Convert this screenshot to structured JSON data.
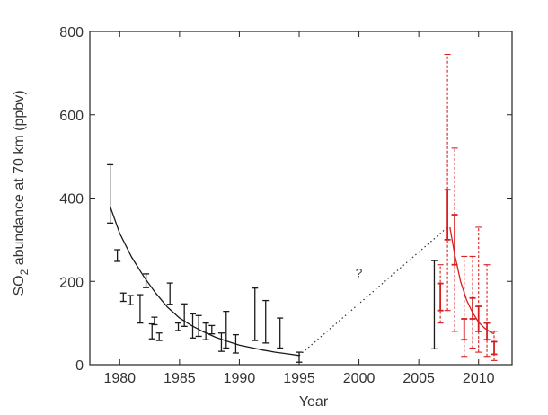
{
  "chart_data": {
    "type": "scatter",
    "title": "",
    "xlabel": "Year",
    "ylabel_main": "SO",
    "ylabel_sub": "2",
    "ylabel_rest": " abundance at 70 km (ppbv)",
    "xlim": [
      1977.5,
      2012.8
    ],
    "ylim": [
      0,
      800
    ],
    "xticks": [
      1980,
      1985,
      1990,
      1995,
      2000,
      2005,
      2010
    ],
    "yticks": [
      0,
      200,
      400,
      600,
      800
    ],
    "grid": false,
    "legend": "none",
    "annotation": "?",
    "annotation_at": [
      2000,
      210
    ],
    "colors": {
      "black": "#1a1a1a",
      "red": "#d62020",
      "axis": "#222222"
    },
    "series": [
      {
        "color": "black",
        "style": "solid",
        "ranges": [
          [
            1979.2,
            340,
            480
          ],
          [
            1979.8,
            248,
            276
          ],
          [
            1980.3,
            152,
            172
          ],
          [
            1980.9,
            144,
            166
          ],
          [
            1981.7,
            100,
            168
          ],
          [
            1982.2,
            185,
            218
          ],
          [
            1982.7,
            62,
            98
          ],
          [
            1982.9,
            96,
            114
          ],
          [
            1983.3,
            58,
            76
          ],
          [
            1984.2,
            145,
            196
          ],
          [
            1984.9,
            82,
            100
          ],
          [
            1985.4,
            92,
            146
          ],
          [
            1986.1,
            64,
            122
          ],
          [
            1986.6,
            68,
            118
          ],
          [
            1987.2,
            60,
            100
          ],
          [
            1987.7,
            74,
            94
          ],
          [
            1988.5,
            32,
            76
          ],
          [
            1988.9,
            40,
            128
          ],
          [
            1989.7,
            28,
            72
          ],
          [
            1991.3,
            58,
            184
          ],
          [
            1992.2,
            52,
            154
          ],
          [
            1993.4,
            40,
            112
          ],
          [
            1995.0,
            6,
            30
          ],
          [
            2006.3,
            38,
            250
          ]
        ],
        "fit": [
          [
            1979.2,
            380
          ],
          [
            1980.0,
            315
          ],
          [
            1981.0,
            258
          ],
          [
            1982.0,
            212
          ],
          [
            1983.0,
            172
          ],
          [
            1984.0,
            138
          ],
          [
            1985.0,
            112
          ],
          [
            1986.0,
            94
          ],
          [
            1987.0,
            79
          ],
          [
            1988.0,
            66
          ],
          [
            1989.0,
            56
          ],
          [
            1990.0,
            47
          ],
          [
            1991.0,
            41
          ],
          [
            1992.0,
            35
          ],
          [
            1993.0,
            30
          ],
          [
            1994.0,
            26
          ],
          [
            1995.0,
            22
          ]
        ]
      },
      {
        "color": "red",
        "style": "mixed",
        "ranges": [
          [
            2006.8,
            130,
            195,
            100,
            240
          ],
          [
            2007.4,
            300,
            420,
            130,
            745
          ],
          [
            2008.0,
            240,
            360,
            80,
            520
          ],
          [
            2008.8,
            60,
            110,
            20,
            260
          ],
          [
            2009.5,
            110,
            160,
            40,
            260
          ],
          [
            2010.0,
            80,
            140,
            30,
            330
          ],
          [
            2010.7,
            60,
            100,
            20,
            240
          ],
          [
            2011.3,
            25,
            55,
            10,
            80
          ]
        ],
        "fit": [
          [
            2007.6,
            330
          ],
          [
            2008.0,
            265
          ],
          [
            2008.5,
            200
          ],
          [
            2009.0,
            155
          ],
          [
            2009.5,
            125
          ],
          [
            2010.0,
            102
          ],
          [
            2010.5,
            88
          ],
          [
            2011.0,
            78
          ],
          [
            2011.3,
            74
          ]
        ]
      }
    ],
    "gap_line": [
      [
        1995.0,
        22
      ],
      [
        2007.4,
        330
      ]
    ]
  }
}
